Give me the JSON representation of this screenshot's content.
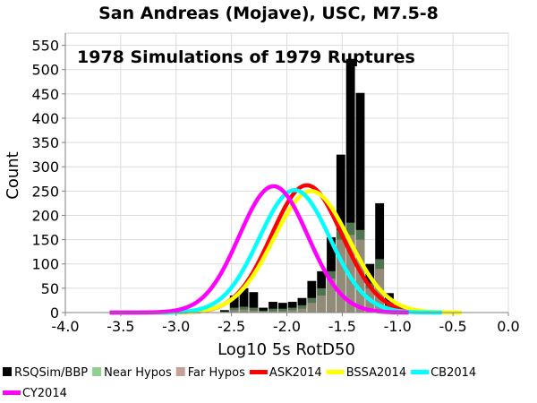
{
  "chart_data": {
    "type": "bar",
    "title": "San Andreas (Mojave), USC, M7.5-8",
    "annotation": "1978 Simulations of 1979 Ruptures",
    "xlabel": "Log10 5s RotD50",
    "ylabel": "Count",
    "xlim": [
      -4.0,
      0.0
    ],
    "ylim": [
      0,
      575
    ],
    "xticks": [
      -4.0,
      -3.5,
      -3.0,
      -2.5,
      -2.0,
      -1.5,
      -1.0,
      -0.5,
      0.0
    ],
    "xtick_labels": [
      "-4.0",
      "-3.5",
      "-3.0",
      "-2.5",
      "-2.0",
      "-1.5",
      "-1.0",
      "-0.5",
      "0.0"
    ],
    "yticks": [
      0,
      50,
      100,
      150,
      200,
      250,
      300,
      350,
      400,
      450,
      500,
      550
    ],
    "ytick_labels": [
      "0",
      "50",
      "100",
      "150",
      "200",
      "250",
      "300",
      "350",
      "400",
      "450",
      "500",
      "550"
    ],
    "grid": true,
    "histogram": {
      "bin_width": 0.0875,
      "bin_centers": [
        -2.5625,
        -2.475,
        -2.3875,
        -2.3,
        -2.2125,
        -2.125,
        -2.0375,
        -1.95,
        -1.8625,
        -1.775,
        -1.6875,
        -1.6,
        -1.5125,
        -1.425,
        -1.3375,
        -1.25,
        -1.1625,
        -1.075
      ],
      "series": [
        {
          "name": "RSQSim/BBP",
          "color": "#000000",
          "values": [
            5,
            35,
            50,
            42,
            10,
            22,
            20,
            22,
            30,
            65,
            85,
            155,
            325,
            522,
            452,
            100,
            225,
            40
          ]
        },
        {
          "name": "Near Hypos",
          "color": "#8fd08f",
          "values": [
            2,
            10,
            12,
            10,
            4,
            8,
            8,
            10,
            15,
            30,
            50,
            85,
            170,
            185,
            170,
            60,
            110,
            15
          ]
        },
        {
          "name": "Far Hypos",
          "color": "#c8a09a",
          "values": [
            1,
            5,
            6,
            4,
            2,
            3,
            3,
            5,
            8,
            20,
            35,
            70,
            150,
            160,
            150,
            50,
            90,
            10
          ]
        }
      ]
    },
    "curves": [
      {
        "name": "ASK2014",
        "color": "#ff0000",
        "mean": -1.82,
        "sd": 0.32,
        "peak": 262,
        "x_range": [
          -3.6,
          -0.8
        ]
      },
      {
        "name": "BSSA2014",
        "color": "#ffff00",
        "mean": -1.78,
        "sd": 0.34,
        "peak": 250,
        "x_range": [
          -3.6,
          -0.42
        ]
      },
      {
        "name": "CB2014",
        "color": "#00ffff",
        "mean": -1.93,
        "sd": 0.32,
        "peak": 252,
        "x_range": [
          -3.6,
          -0.6
        ]
      },
      {
        "name": "CY2014",
        "color": "#ff00ff",
        "mean": -2.12,
        "sd": 0.31,
        "peak": 260,
        "x_range": [
          -3.6,
          -0.9
        ]
      }
    ]
  },
  "legend": [
    {
      "label": "RSQSim/BBP",
      "color": "#000000",
      "kind": "square"
    },
    {
      "label": "Near Hypos",
      "color": "#8fd08f",
      "kind": "square"
    },
    {
      "label": "Far Hypos",
      "color": "#c8a09a",
      "kind": "square"
    },
    {
      "label": "ASK2014",
      "color": "#ff0000",
      "kind": "line"
    },
    {
      "label": "BSSA2014",
      "color": "#ffff00",
      "kind": "line"
    },
    {
      "label": "CB2014",
      "color": "#00ffff",
      "kind": "line"
    },
    {
      "label": "CY2014",
      "color": "#ff00ff",
      "kind": "line"
    }
  ]
}
